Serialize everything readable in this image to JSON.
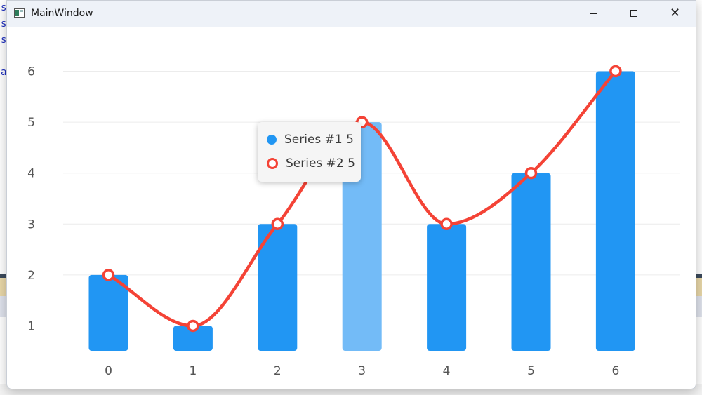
{
  "window": {
    "title": "MainWindow",
    "minimize_glyph": "",
    "close_glyph": "✕"
  },
  "icons": {
    "app": "app-window-icon",
    "minimize": "minimize-icon",
    "maximize": "maximize-icon",
    "close": "close-icon"
  },
  "colors": {
    "bar": "#2196f3",
    "bar_highlight": "#73bbf7",
    "line": "#f44336",
    "grid": "#ececec",
    "axis_text": "#555555"
  },
  "tooltip": {
    "rows": [
      {
        "label": "Series #1 5"
      },
      {
        "label": "Series #2 5"
      }
    ]
  },
  "chart_data": {
    "type": "bar",
    "categories": [
      "0",
      "1",
      "2",
      "3",
      "4",
      "5",
      "6"
    ],
    "yticks": [
      "1",
      "2",
      "3",
      "4",
      "5",
      "6"
    ],
    "ylim": [
      0.5,
      6
    ],
    "grid": true,
    "highlighted_index": 3,
    "series": [
      {
        "name": "Series #1",
        "type": "bar",
        "values": [
          2,
          1,
          3,
          5,
          3,
          4,
          6
        ]
      },
      {
        "name": "Series #2",
        "type": "line",
        "values": [
          2,
          1,
          3,
          5,
          3,
          4,
          6
        ]
      }
    ]
  }
}
